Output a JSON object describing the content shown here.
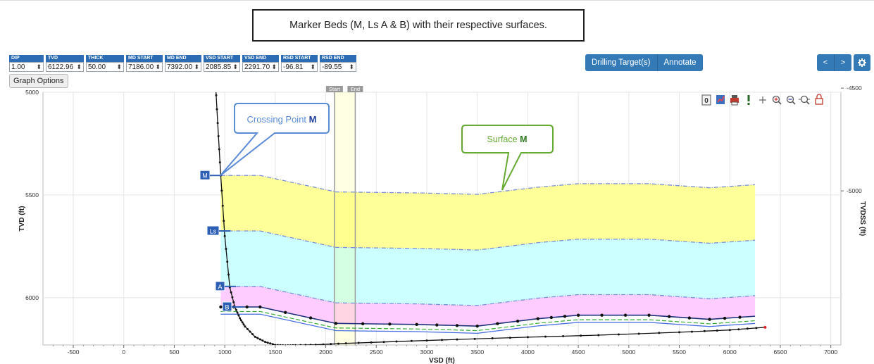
{
  "caption": "Marker Beds (M, Ls A & B) with their respective surfaces.",
  "params": [
    {
      "label": "DIP",
      "value": "1.00"
    },
    {
      "label": "TVD",
      "value": "6122.96"
    },
    {
      "label": "THICK",
      "value": "50.00"
    },
    {
      "label": "MD START",
      "value": "7186.00"
    },
    {
      "label": "MD END",
      "value": "7392.00"
    },
    {
      "label": "VSD START",
      "value": "2085.85"
    },
    {
      "label": "VSD END",
      "value": "2291.70"
    },
    {
      "label": "RSD START",
      "value": "-96.81"
    },
    {
      "label": "RSD END",
      "value": "-89.55"
    }
  ],
  "graph_options_label": "Graph Options",
  "buttons": {
    "drilling_targets": "Drilling Target(s)",
    "annotate": "Annotate",
    "prev": "<",
    "next": ">"
  },
  "toolbar_icons": [
    "reset-zoom-icon",
    "chart-mode-icon",
    "print-icon",
    "info-icon",
    "crosshair-icon",
    "zoom-in-icon",
    "zoom-out-icon",
    "zoom-fit-icon",
    "lock-icon"
  ],
  "callouts": {
    "crossing": {
      "text": "Crossing Point ",
      "bold": "M"
    },
    "surface": {
      "text": "Surface ",
      "bold": "M"
    }
  },
  "window_labels": {
    "start": "Start",
    "end": "End"
  },
  "colors": {
    "bed_m": "#ffff99",
    "bed_ls": "#ccffff",
    "bed_a": "#ffccff",
    "surface_line": "#7b8fd6",
    "b_line": "#1f2f7a",
    "green_dash": "#33aa33",
    "well": "#111111",
    "callout_blue": "#5b8bd6",
    "callout_green": "#66aa33",
    "marker_label_bg": "#2c5fb5"
  },
  "chart_data": {
    "type": "line",
    "xlabel": "VSD (ft)",
    "ylabel": "TVD (ft)",
    "y2label": "TVDSS (ft)",
    "xlim": [
      -800,
      7100
    ],
    "ylim": [
      6230,
      5000
    ],
    "y2lim": [
      -5750,
      -4520
    ],
    "x_ticks": [
      -500,
      0,
      500,
      1000,
      1500,
      2000,
      2500,
      3000,
      3500,
      4000,
      4500,
      5000,
      5500,
      6000,
      6500,
      7000
    ],
    "y_ticks": [
      5000,
      5500,
      6000
    ],
    "y2_ticks": [
      -4500,
      -5000
    ],
    "markers": [
      "M",
      "Ls",
      "A",
      "B"
    ],
    "surface_x": [
      960,
      1350,
      2100,
      2900,
      3500,
      4100,
      4500,
      5200,
      5800,
      6250
    ],
    "surfaces": {
      "M": [
        5405,
        5405,
        5485,
        5490,
        5497,
        5462,
        5445,
        5445,
        5465,
        5450
      ],
      "Ls": [
        5675,
        5675,
        5755,
        5760,
        5768,
        5732,
        5715,
        5715,
        5735,
        5720
      ],
      "A": [
        5945,
        5945,
        6025,
        6030,
        6038,
        6002,
        5985,
        5985,
        6005,
        5990
      ],
      "B": [
        6045,
        6045,
        6125,
        6130,
        6138,
        6102,
        6085,
        6085,
        6105,
        6090
      ]
    },
    "well_x": [
      900,
      930,
      960,
      1000,
      1050,
      1100,
      1150,
      1200,
      1300,
      1400,
      1500,
      1600,
      1700,
      1900,
      2200,
      2700,
      3300,
      4000,
      4700,
      5500,
      6000,
      6350
    ],
    "well_tvd": [
      4880,
      5150,
      5405,
      5700,
      5950,
      6045,
      6100,
      6140,
      6190,
      6215,
      6230,
      6232,
      6231,
      6229,
      6222,
      6213,
      6203,
      6192,
      6182,
      6168,
      6157,
      6144
    ],
    "start_window": [
      2085.85,
      2291.7
    ]
  }
}
